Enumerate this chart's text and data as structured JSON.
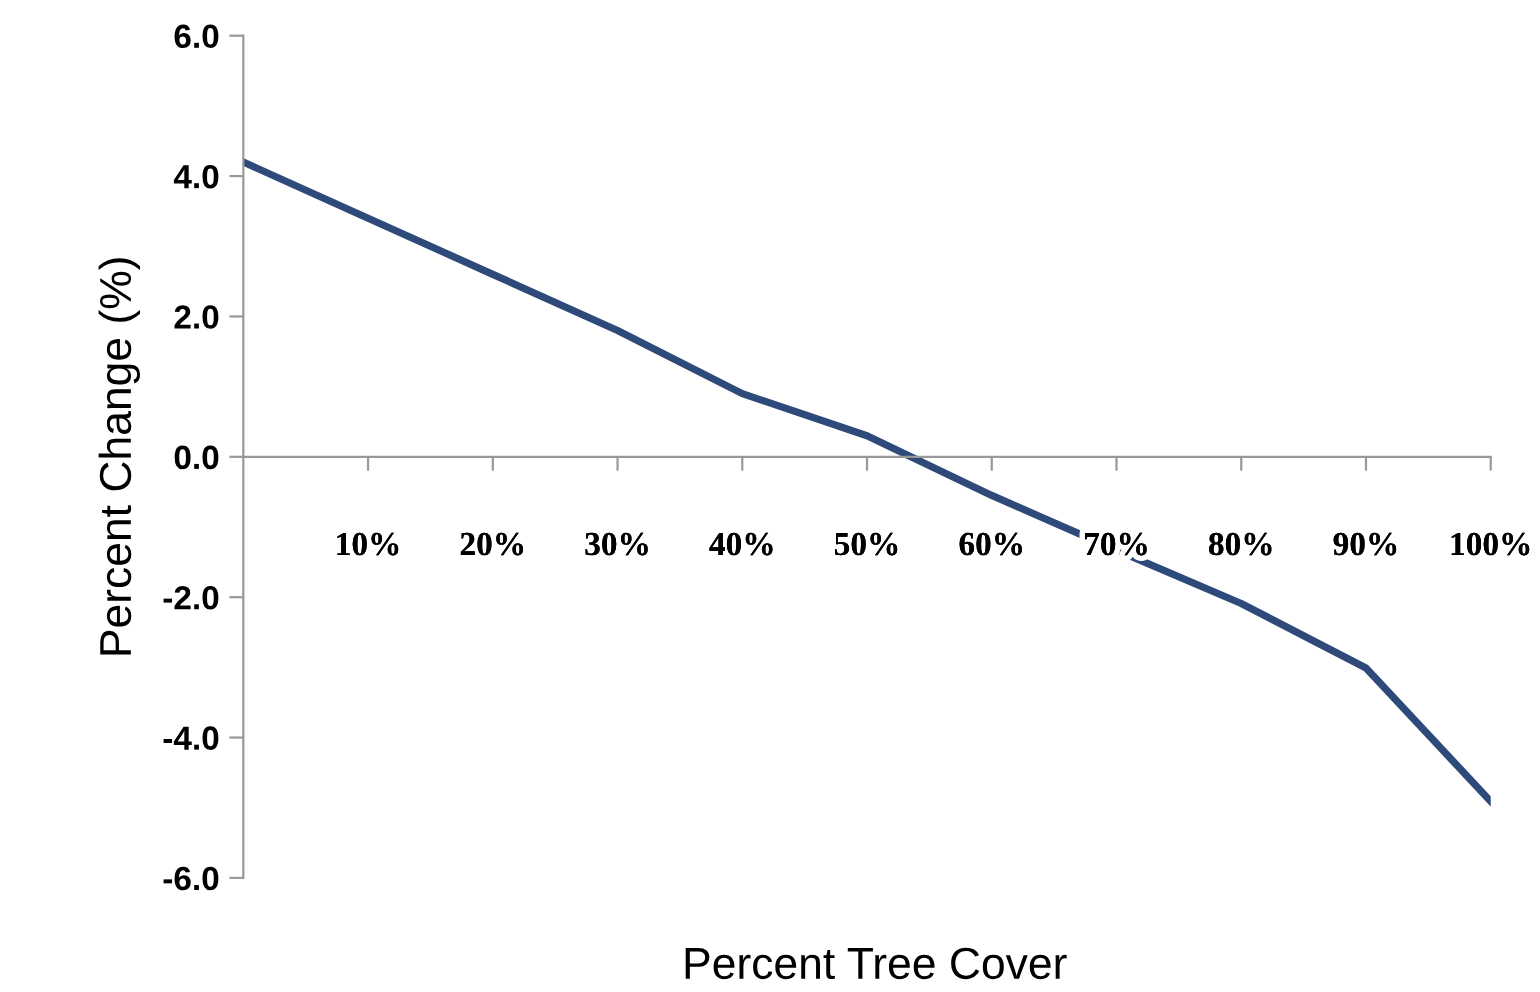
{
  "chart_data": {
    "type": "line",
    "xlabel": "Percent Tree Cover",
    "ylabel": "Percent Change (%)",
    "x": [
      0,
      10,
      20,
      30,
      40,
      50,
      60,
      70,
      80,
      90,
      100
    ],
    "series": [
      {
        "color": "#2e4a7a",
        "values": [
          4.2,
          3.4,
          2.6,
          1.8,
          0.9,
          0.3,
          -0.55,
          -1.33,
          -2.09,
          -3.01,
          -4.91
        ]
      }
    ],
    "xlim": [
      0,
      100
    ],
    "xticks": [
      {
        "value": 10,
        "label": "10%"
      },
      {
        "value": 20,
        "label": "20%"
      },
      {
        "value": 30,
        "label": "30%"
      },
      {
        "value": 40,
        "label": "40%"
      },
      {
        "value": 50,
        "label": "50%"
      },
      {
        "value": 60,
        "label": "60%"
      },
      {
        "value": 70,
        "label": "70%"
      },
      {
        "value": 80,
        "label": "80%"
      },
      {
        "value": 90,
        "label": "90%"
      },
      {
        "value": 100,
        "label": "100%"
      }
    ],
    "ylim": [
      -6.0,
      6.0
    ],
    "yticks": [
      {
        "value": -6,
        "label": "-6.0"
      },
      {
        "value": -4,
        "label": "-4.0"
      },
      {
        "value": -2,
        "label": "-2.0"
      },
      {
        "value": 0,
        "label": "0.0"
      },
      {
        "value": 2,
        "label": "2.0"
      },
      {
        "value": 4,
        "label": "4.0"
      },
      {
        "value": 6,
        "label": "6.0"
      }
    ],
    "grid": false,
    "legend": false,
    "marker": "none",
    "line_style": "solid"
  }
}
